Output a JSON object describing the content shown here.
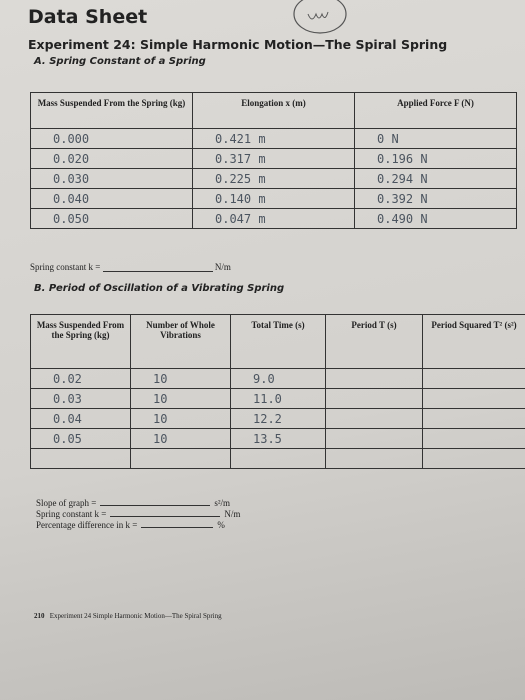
{
  "header": {
    "title": "Data Sheet"
  },
  "experiment": "Experiment 24: Simple Harmonic Motion—The Spiral Spring",
  "section_a": {
    "title": "A. Spring Constant of a Spring",
    "table": {
      "headers": [
        "Mass Suspended From the Spring (kg)",
        "Elongation x (m)",
        "Applied Force F (N)"
      ],
      "rows": [
        [
          "0.000",
          "0.421 m",
          "0 N"
        ],
        [
          "0.020",
          "0.317 m",
          "0.196 N"
        ],
        [
          "0.030",
          "0.225 m",
          "0.294 N"
        ],
        [
          "0.040",
          "0.140 m",
          "0.392 N"
        ],
        [
          "0.050",
          "0.047 m",
          "0.490 N"
        ]
      ]
    },
    "spring_constant": {
      "label": "Spring constant k =",
      "unit": "N/m"
    }
  },
  "section_b": {
    "title": "B. Period of Oscillation of a Vibrating Spring",
    "table": {
      "headers": [
        "Mass Suspended From the Spring (kg)",
        "Number of Whole Vibrations",
        "Total Time (s)",
        "Period T (s)",
        "Period Squared T² (s²)"
      ],
      "rows": [
        [
          "0.02",
          "10",
          "9.0"
        ],
        [
          "0.03",
          "10",
          "11.0"
        ],
        [
          "0.04",
          "10",
          "12.2"
        ],
        [
          "0.05",
          "10",
          "13.5"
        ]
      ]
    },
    "results": [
      {
        "label": "Slope of graph =",
        "unit": "s²/m"
      },
      {
        "label": "Spring constant k =",
        "unit": "N/m"
      },
      {
        "label": "Percentage difference in k =",
        "unit": "%"
      }
    ]
  },
  "footer": {
    "page": "210",
    "text": "Experiment 24  Simple Harmonic Motion—The Spiral Spring"
  }
}
